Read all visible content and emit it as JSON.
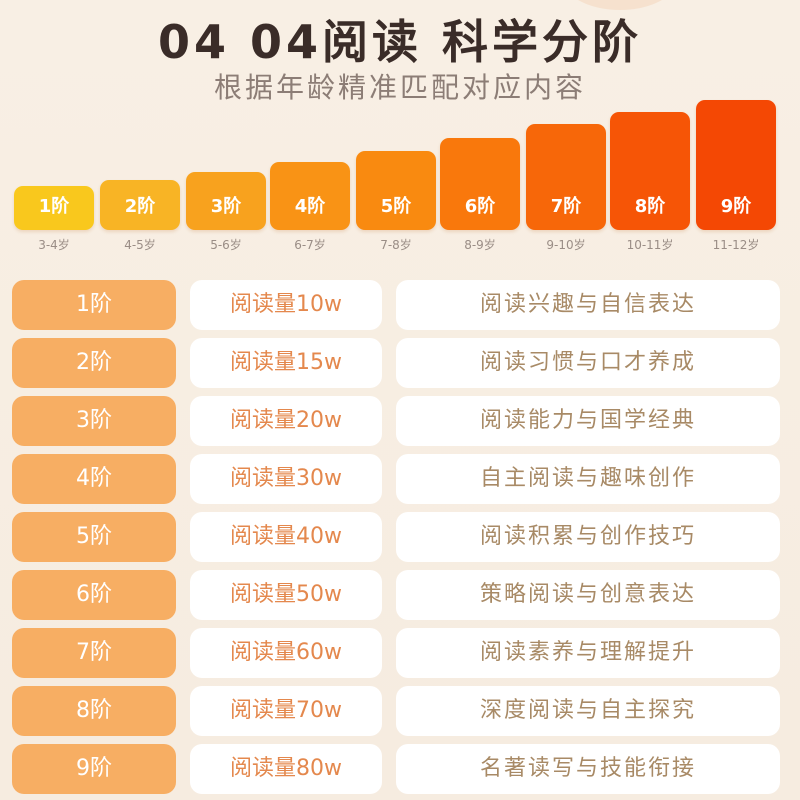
{
  "header": {
    "title": "04 04阅读 科学分阶",
    "subtitle": "根据年龄精准匹配对应内容"
  },
  "steps": [
    {
      "level": "1阶",
      "age": "3-4岁",
      "color": "#f9c81d"
    },
    {
      "level": "2阶",
      "age": "4-5岁",
      "color": "#f8b425"
    },
    {
      "level": "3阶",
      "age": "5-6岁",
      "color": "#f8a21e"
    },
    {
      "level": "4阶",
      "age": "6-7岁",
      "color": "#f99315"
    },
    {
      "level": "5阶",
      "age": "7-8岁",
      "color": "#f98a10"
    },
    {
      "level": "6阶",
      "age": "8-9岁",
      "color": "#f9780c"
    },
    {
      "level": "7阶",
      "age": "9-10岁",
      "color": "#f76709"
    },
    {
      "level": "8阶",
      "age": "10-11岁",
      "color": "#f65506"
    },
    {
      "level": "9阶",
      "age": "11-12岁",
      "color": "#f44804"
    }
  ],
  "rows": [
    {
      "level": "1阶",
      "volume": "阅读量10w",
      "topic": "阅读兴趣与自信表达"
    },
    {
      "level": "2阶",
      "volume": "阅读量15w",
      "topic": "阅读习惯与口才养成"
    },
    {
      "level": "3阶",
      "volume": "阅读量20w",
      "topic": "阅读能力与国学经典"
    },
    {
      "level": "4阶",
      "volume": "阅读量30w",
      "topic": "自主阅读与趣味创作"
    },
    {
      "level": "5阶",
      "volume": "阅读量40w",
      "topic": "阅读积累与创作技巧"
    },
    {
      "level": "6阶",
      "volume": "阅读量50w",
      "topic": "策略阅读与创意表达"
    },
    {
      "level": "7阶",
      "volume": "阅读量60w",
      "topic": "阅读素养与理解提升"
    },
    {
      "level": "8阶",
      "volume": "阅读量70w",
      "topic": "深度阅读与自主探究"
    },
    {
      "level": "9阶",
      "volume": "阅读量80w",
      "topic": "名著读写与技能衔接"
    }
  ],
  "colors": {
    "level_cell": "#f7ae63",
    "volume_text": "#e4884d",
    "topic_text": "#a88a66",
    "background": "#f8efe4"
  }
}
